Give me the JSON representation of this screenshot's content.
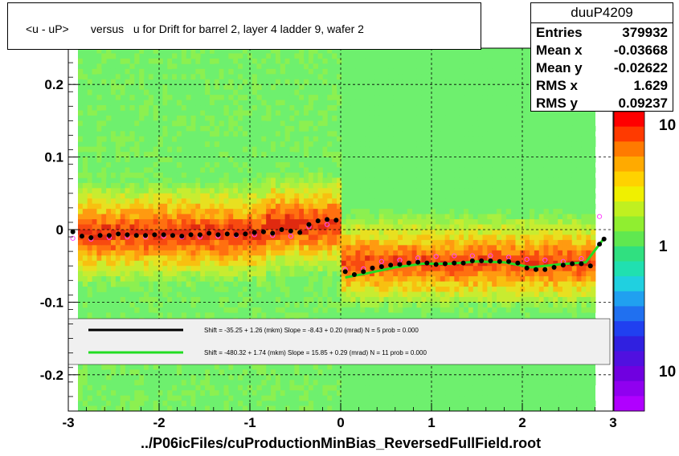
{
  "title": "<u - uP>       versus   u for Drift for barrel 2, layer 4 ladder 9, wafer 2",
  "xlabel": "../P06icFiles/cuProductionMinBias_ReversedFullField.root",
  "stats": {
    "name": "duuP4209",
    "rows": [
      {
        "label": "Entries",
        "value": "379932"
      },
      {
        "label": "Mean x",
        "value": "-0.03668"
      },
      {
        "label": "Mean y",
        "value": "-0.02622"
      },
      {
        "label": "RMS x",
        "value": "1.629"
      },
      {
        "label": "RMS y",
        "value": "0.09237"
      }
    ]
  },
  "colors": {
    "black_series": "#000000",
    "green_fit": "#22dd22",
    "magenta_series": "#ff44ff",
    "legend_bg": "#f0f0f0"
  },
  "chart_data": {
    "type": "heatmap",
    "xlim": [
      -3,
      3
    ],
    "ylim": [
      -0.25,
      0.25
    ],
    "x_ticks": [
      -3,
      -2,
      -1,
      0,
      1,
      2,
      3
    ],
    "y_ticks": [
      -0.2,
      -0.1,
      0,
      0.1,
      0.2
    ],
    "y_tick_labels": [
      "-0.2",
      "-0.1",
      "0",
      "0.1",
      "0.2"
    ],
    "color_scale_labels": [
      "10",
      "1",
      "10"
    ],
    "grid": true,
    "series": [
      {
        "name": "black profile",
        "x": [
          -2.95,
          -2.85,
          -2.75,
          -2.65,
          -2.55,
          -2.45,
          -2.35,
          -2.25,
          -2.15,
          -2.05,
          -1.95,
          -1.85,
          -1.75,
          -1.65,
          -1.55,
          -1.45,
          -1.35,
          -1.25,
          -1.15,
          -1.05,
          -0.95,
          -0.85,
          -0.75,
          -0.65,
          -0.55,
          -0.45,
          -0.35,
          -0.25,
          -0.15,
          -0.05,
          0.05,
          0.15,
          0.25,
          0.35,
          0.45,
          0.55,
          0.65,
          0.75,
          0.85,
          0.95,
          1.05,
          1.15,
          1.25,
          1.35,
          1.45,
          1.55,
          1.65,
          1.75,
          1.85,
          1.95,
          2.05,
          2.15,
          2.25,
          2.35,
          2.45,
          2.55,
          2.65,
          2.75,
          2.85,
          2.9
        ],
        "y": [
          -0.003,
          -0.009,
          -0.011,
          -0.008,
          -0.008,
          -0.006,
          -0.007,
          -0.008,
          -0.008,
          -0.007,
          -0.007,
          -0.008,
          -0.009,
          -0.007,
          -0.007,
          -0.005,
          -0.007,
          -0.006,
          -0.007,
          -0.006,
          -0.004,
          -0.003,
          -0.005,
          0.0,
          -0.002,
          -0.004,
          0.007,
          0.012,
          0.014,
          0.013,
          -0.058,
          -0.062,
          -0.058,
          -0.053,
          -0.051,
          -0.049,
          -0.048,
          -0.046,
          -0.045,
          -0.046,
          -0.048,
          -0.047,
          -0.046,
          -0.046,
          -0.043,
          -0.043,
          -0.043,
          -0.044,
          -0.044,
          -0.046,
          -0.053,
          -0.055,
          -0.055,
          -0.052,
          -0.049,
          -0.047,
          -0.047,
          -0.05,
          -0.02,
          -0.013
        ]
      },
      {
        "name": "magenta profile",
        "x": [
          -2.95,
          -2.75,
          -2.55,
          -2.35,
          -2.15,
          -1.95,
          -1.75,
          -1.55,
          -1.35,
          -1.15,
          -0.95,
          -0.75,
          -0.55,
          -0.35,
          -0.15,
          0.05,
          0.25,
          0.45,
          0.65,
          0.85,
          1.05,
          1.25,
          1.45,
          1.65,
          1.85,
          2.05,
          2.25,
          2.45,
          2.65,
          2.85
        ],
        "y": [
          -0.012,
          -0.013,
          -0.011,
          -0.01,
          -0.01,
          -0.009,
          -0.01,
          -0.01,
          -0.009,
          -0.008,
          -0.007,
          -0.008,
          -0.009,
          0.004,
          0.007,
          -0.055,
          -0.054,
          -0.044,
          -0.042,
          -0.039,
          -0.037,
          -0.036,
          -0.036,
          -0.036,
          -0.038,
          -0.041,
          -0.042,
          -0.044,
          -0.04,
          0.018
        ]
      },
      {
        "name": "green fit",
        "x": [
          0.05,
          0.3,
          0.6,
          0.9,
          1.2,
          1.5,
          1.8,
          2.1,
          2.4,
          2.7,
          2.9
        ],
        "y": [
          -0.066,
          -0.06,
          -0.052,
          -0.047,
          -0.047,
          -0.044,
          -0.045,
          -0.052,
          -0.048,
          -0.045,
          -0.012
        ]
      }
    ],
    "legend": {
      "placement": "bottom",
      "entries": [
        {
          "color": "#000000",
          "text": "Shift =   -35.25 + 1.26 (mkm) Slope =    -8.43 + 0.20 (mrad)  N = 5 prob = 0.000"
        },
        {
          "color": "#22dd22",
          "text": "Shift =  -480.32 + 1.74 (mkm) Slope =    15.85 + 0.29 (mrad)  N = 11 prob = 0.000"
        }
      ]
    }
  }
}
